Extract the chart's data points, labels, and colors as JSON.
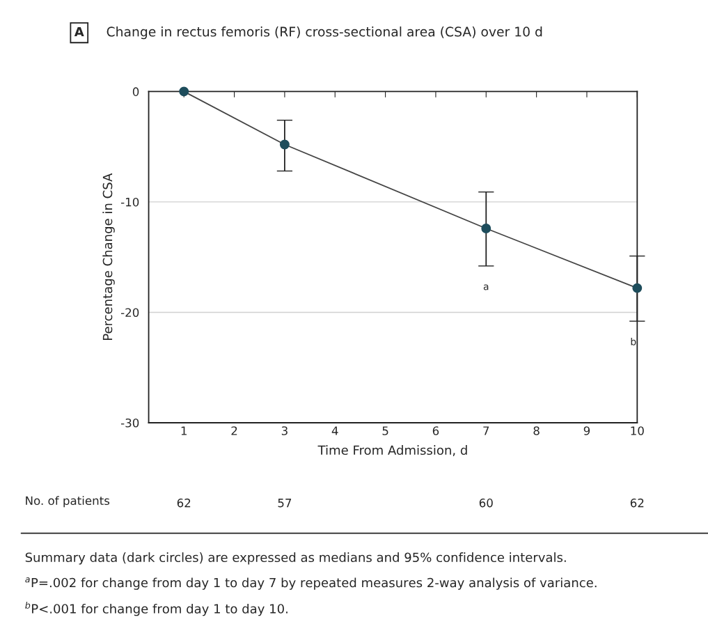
{
  "chart_data": {
    "type": "line",
    "title": "Change in rectus femoris (RF) cross-sectional area (CSA) over 10 d",
    "xlabel": "Time From Admission, d",
    "ylabel": "Percentage Change in CSA",
    "x": [
      1,
      3,
      7,
      10
    ],
    "series": [
      {
        "color": "#1e4d5c",
        "values": [
          0,
          -4.8,
          -12.4,
          -17.8
        ],
        "errors": [
          null,
          [
            -7.2,
            -2.6
          ],
          [
            -15.8,
            -9.1
          ],
          [
            -20.8,
            -14.9
          ]
        ]
      }
    ],
    "xlim": [
      0.3,
      10
    ],
    "xticks": [
      1,
      2,
      3,
      4,
      5,
      6,
      7,
      8,
      9,
      10
    ],
    "ylim": [
      -30,
      0
    ],
    "yticks": [
      0,
      -10,
      -20,
      -30
    ],
    "grid": "y",
    "marker": "circle",
    "line_style": "solid",
    "annotations": [
      "A",
      "a",
      "b",
      "No. of patients",
      "62",
      "57",
      "60",
      "62",
      "Summary data (dark circles) are expressed as medians and 95% confidence intervals.",
      "$^{a}$P=.002 for change from day 1 to day 7 by repeated measures 2-way analysis of variance.",
      "$^{b}$P<.001 for change from day 1 to day 10."
    ]
  }
}
